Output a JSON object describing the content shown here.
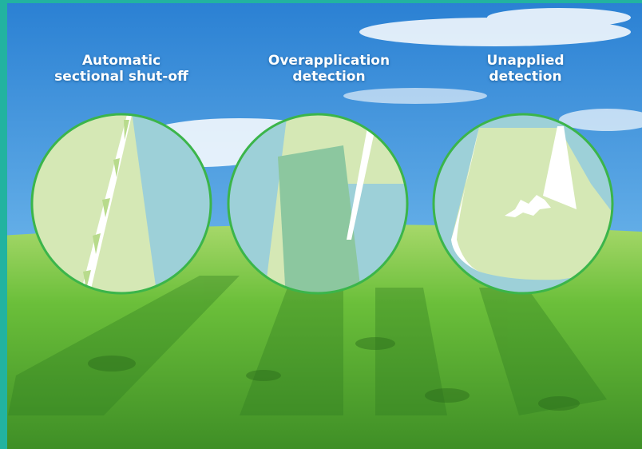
{
  "panels": [
    {
      "title_line1": "Automatic",
      "title_line2": "sectional shut-off"
    },
    {
      "title_line1": "Overapplication",
      "title_line2": "detection"
    },
    {
      "title_line1": "Unapplied",
      "title_line2": "detection"
    }
  ],
  "colors": {
    "sky_top": "#2f86d6",
    "sky_bottom": "#9fd0f2",
    "grass_light": "#8fd14a",
    "grass_dark": "#2f7a20",
    "border_teal": "#22b3a0",
    "circle_ring": "#3bb54a",
    "field_applied": "#d5e8b5",
    "field_overlap": "#8cc79f",
    "field_unapplied": "#9dd0d8"
  }
}
